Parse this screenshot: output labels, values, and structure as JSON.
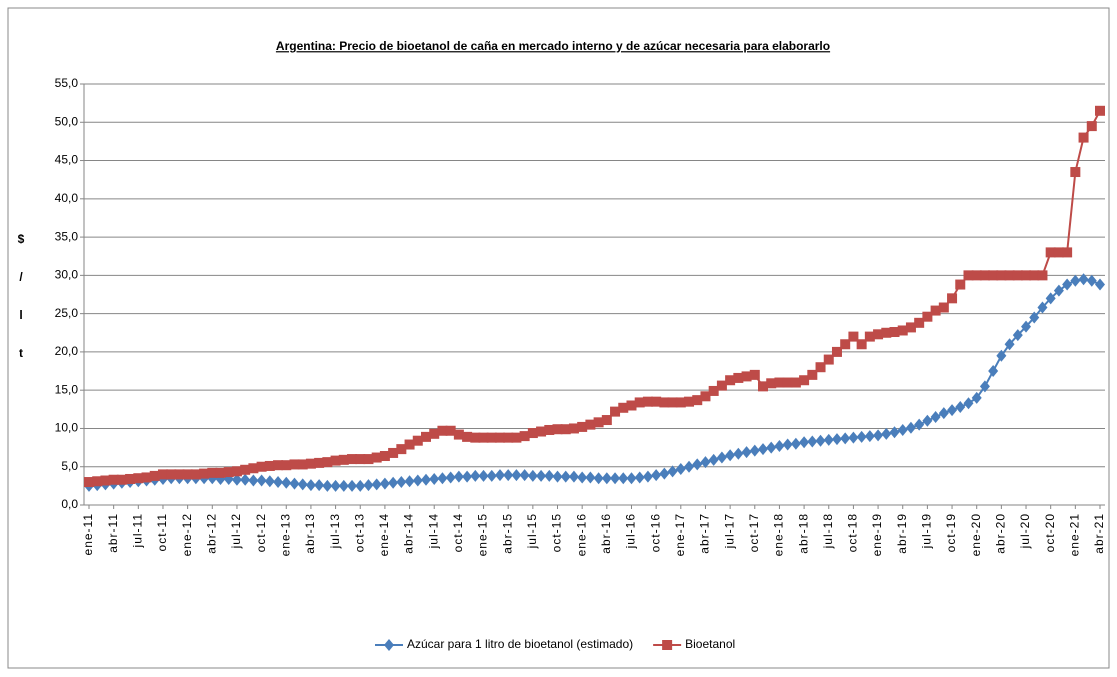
{
  "chart_data": {
    "type": "line",
    "title": "Argentina: Precio de bioetanol de caña  en mercado interno y de azúcar  necesaria para elaborarlo",
    "y_label": [
      "$",
      "/",
      "l",
      "t"
    ],
    "categories": [
      "ene-11",
      null,
      null,
      "abr-11",
      null,
      null,
      "jul-11",
      null,
      null,
      "oct-11",
      null,
      null,
      "ene-12",
      null,
      null,
      "abr-12",
      null,
      null,
      "jul-12",
      null,
      null,
      "oct-12",
      null,
      null,
      "ene-13",
      null,
      null,
      "abr-13",
      null,
      null,
      "jul-13",
      null,
      null,
      "oct-13",
      null,
      null,
      "ene-14",
      null,
      null,
      "abr-14",
      null,
      null,
      "jul-14",
      null,
      null,
      "oct-14",
      null,
      null,
      "ene-15",
      null,
      null,
      "abr-15",
      null,
      null,
      "jul-15",
      null,
      null,
      "oct-15",
      null,
      null,
      "ene-16",
      null,
      null,
      "abr-16",
      null,
      null,
      "jul-16",
      null,
      null,
      "oct-16",
      null,
      null,
      "ene-17",
      null,
      null,
      "abr-17",
      null,
      null,
      "jul-17",
      null,
      null,
      "oct-17",
      null,
      null,
      "ene-18",
      null,
      null,
      "abr-18",
      null,
      null,
      "jul-18",
      null,
      null,
      "oct-18",
      null,
      null,
      "ene-19",
      null,
      null,
      "abr-19",
      null,
      null,
      "jul-19",
      null,
      null,
      "oct-19",
      null,
      null,
      "ene-20",
      null,
      null,
      "abr-20",
      null,
      null,
      "jul-20",
      null,
      null,
      "oct-20",
      null,
      null,
      "ene-21",
      null,
      null,
      "abr-21"
    ],
    "series": [
      {
        "name": "Azúcar para 1 litro de bioetanol (estimado)",
        "color": "#4a7ebb",
        "marker": "diamond",
        "values": [
          2.5,
          2.6,
          2.7,
          2.8,
          2.9,
          3.0,
          3.1,
          3.2,
          3.3,
          3.4,
          3.5,
          3.5,
          3.5,
          3.5,
          3.5,
          3.5,
          3.4,
          3.4,
          3.3,
          3.3,
          3.2,
          3.2,
          3.1,
          3.0,
          2.9,
          2.8,
          2.7,
          2.6,
          2.6,
          2.5,
          2.5,
          2.5,
          2.5,
          2.5,
          2.6,
          2.7,
          2.8,
          2.9,
          3.0,
          3.1,
          3.2,
          3.3,
          3.4,
          3.5,
          3.6,
          3.7,
          3.7,
          3.8,
          3.8,
          3.8,
          3.9,
          3.9,
          3.9,
          3.9,
          3.8,
          3.8,
          3.8,
          3.7,
          3.7,
          3.7,
          3.6,
          3.6,
          3.5,
          3.5,
          3.5,
          3.5,
          3.5,
          3.6,
          3.7,
          3.9,
          4.1,
          4.4,
          4.7,
          5.0,
          5.3,
          5.6,
          5.9,
          6.2,
          6.5,
          6.7,
          6.9,
          7.1,
          7.3,
          7.5,
          7.7,
          7.9,
          8.0,
          8.2,
          8.3,
          8.4,
          8.5,
          8.6,
          8.7,
          8.8,
          8.9,
          9.0,
          9.1,
          9.3,
          9.5,
          9.8,
          10.1,
          10.5,
          11.0,
          11.5,
          12.0,
          12.4,
          12.8,
          13.3,
          14.0,
          15.5,
          17.5,
          19.5,
          21.0,
          22.2,
          23.3,
          24.5,
          25.8,
          27.0,
          28.0,
          28.8,
          29.3,
          29.5,
          29.3,
          28.8
        ]
      },
      {
        "name": "Bioetanol",
        "color": "#be4b48",
        "marker": "square",
        "values": [
          3.0,
          3.1,
          3.2,
          3.3,
          3.3,
          3.4,
          3.5,
          3.6,
          3.8,
          4.0,
          4.0,
          4.0,
          4.0,
          4.0,
          4.1,
          4.2,
          4.2,
          4.3,
          4.4,
          4.6,
          4.8,
          5.0,
          5.1,
          5.2,
          5.2,
          5.3,
          5.3,
          5.4,
          5.5,
          5.6,
          5.8,
          5.9,
          6.0,
          6.0,
          6.0,
          6.2,
          6.4,
          6.8,
          7.3,
          7.9,
          8.4,
          8.9,
          9.3,
          9.7,
          9.7,
          9.2,
          8.9,
          8.8,
          8.8,
          8.8,
          8.8,
          8.8,
          8.8,
          9.0,
          9.4,
          9.6,
          9.8,
          9.9,
          9.9,
          10.0,
          10.2,
          10.5,
          10.8,
          11.1,
          12.2,
          12.7,
          13.0,
          13.4,
          13.5,
          13.5,
          13.4,
          13.4,
          13.4,
          13.5,
          13.7,
          14.2,
          14.9,
          15.6,
          16.3,
          16.6,
          16.8,
          17.0,
          15.5,
          15.9,
          16.0,
          16.0,
          16.0,
          16.3,
          17.0,
          18.0,
          19.0,
          20.0,
          21.0,
          22.0,
          21.0,
          22.0,
          22.3,
          22.5,
          22.6,
          22.8,
          23.2,
          23.8,
          24.6,
          25.4,
          25.8,
          27.0,
          28.8,
          30.0,
          30.0,
          30.0,
          30.0,
          30.0,
          30.0,
          30.0,
          30.0,
          30.0,
          30.0,
          33.0,
          33.0,
          33.0,
          43.5,
          48.0,
          49.5,
          51.5
        ]
      }
    ],
    "ylim": [
      0,
      55
    ],
    "yticks": [
      {
        "value": 0,
        "label": "0,0"
      },
      {
        "value": 5,
        "label": "5,0"
      },
      {
        "value": 10,
        "label": "10,0"
      },
      {
        "value": 15,
        "label": "15,0"
      },
      {
        "value": 20,
        "label": "20,0"
      },
      {
        "value": 25,
        "label": "25,0"
      },
      {
        "value": 30,
        "label": "30,0"
      },
      {
        "value": 35,
        "label": "35,0"
      },
      {
        "value": 40,
        "label": "40,0"
      },
      {
        "value": 45,
        "label": "45,0"
      },
      {
        "value": 50,
        "label": "50,0"
      },
      {
        "value": 55,
        "label": "55,0"
      }
    ],
    "grid": true,
    "legend": "bottom"
  }
}
